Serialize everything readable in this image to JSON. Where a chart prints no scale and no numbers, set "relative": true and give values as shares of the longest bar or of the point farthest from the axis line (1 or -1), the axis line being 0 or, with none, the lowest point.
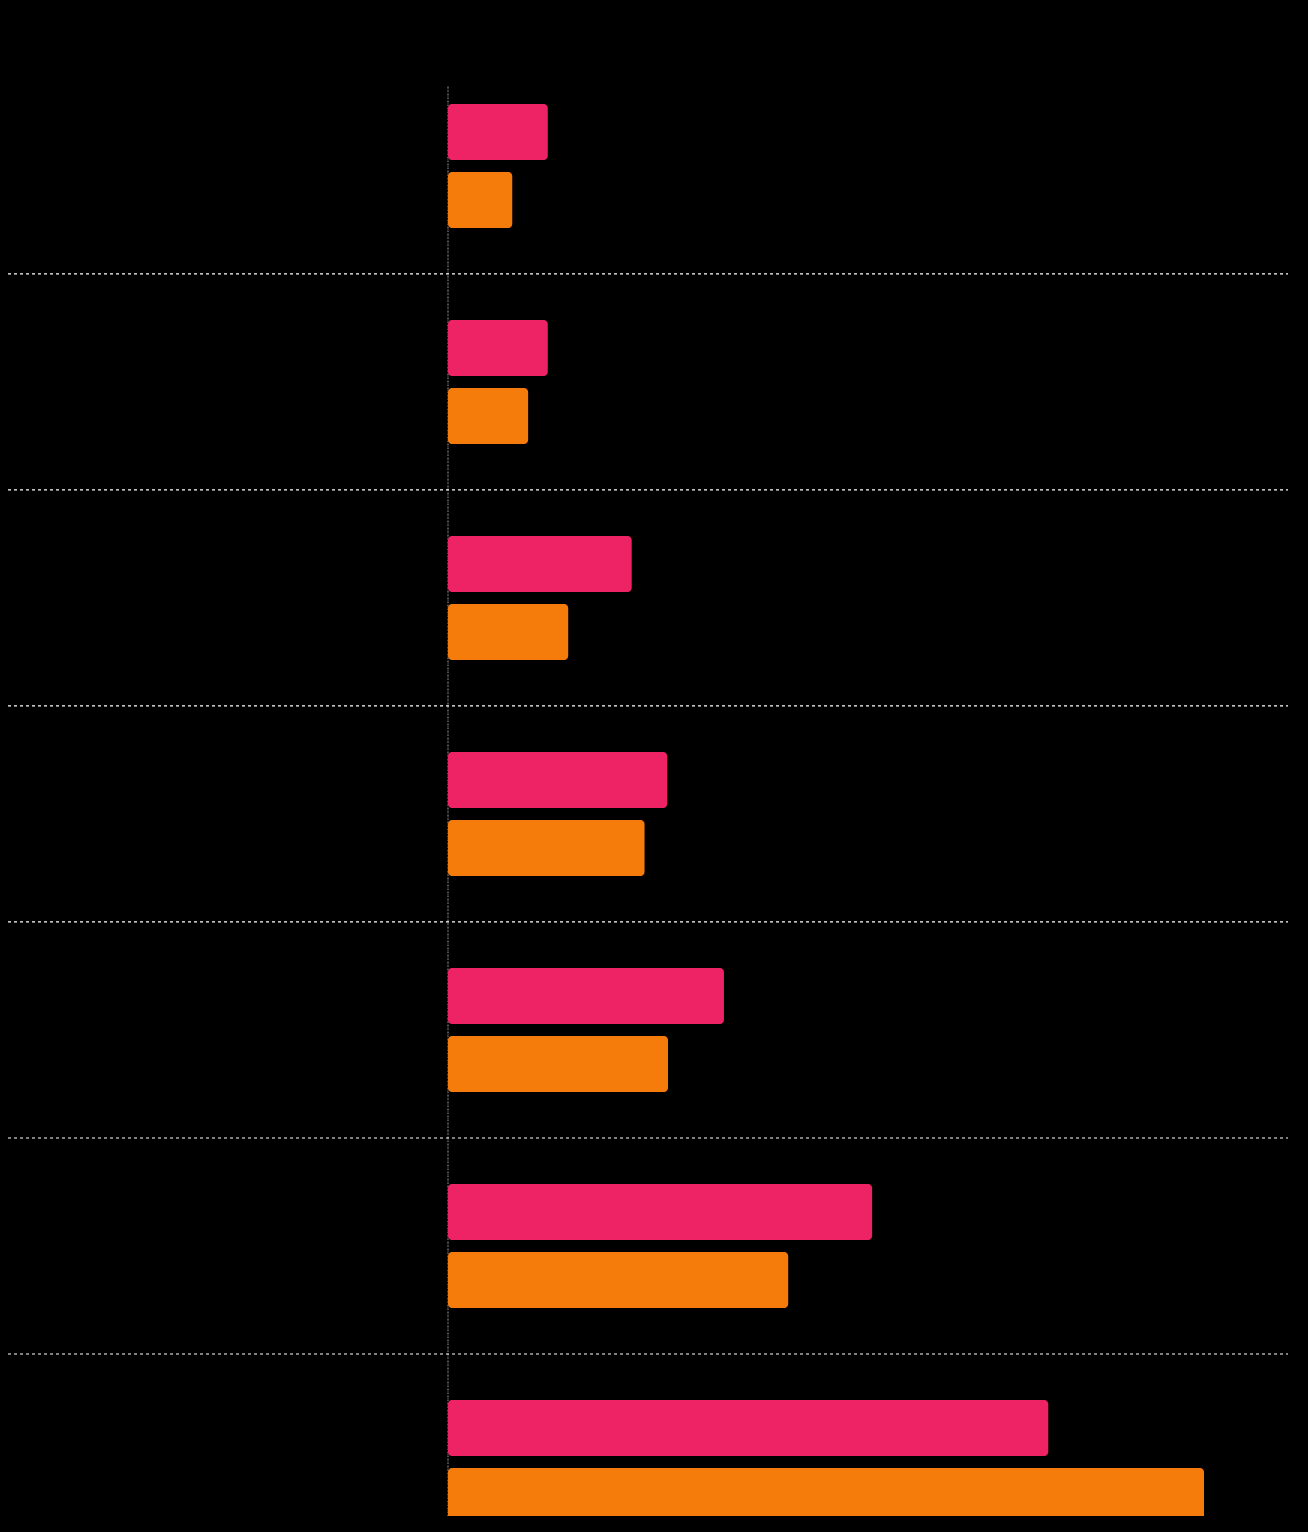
{
  "chart_data": {
    "type": "bar",
    "orientation": "horizontal",
    "relative": true,
    "grid": "y",
    "categories": [
      null,
      null,
      null,
      null,
      null,
      null,
      null
    ],
    "series": [
      {
        "color": "#ee2366",
        "values": [
          0.132,
          0.132,
          0.243,
          0.29,
          0.365,
          0.561,
          0.794
        ]
      },
      {
        "color": "#f57c0a",
        "values": [
          0.085,
          0.106,
          0.159,
          0.26,
          0.291,
          0.45,
          1
        ]
      }
    ]
  }
}
